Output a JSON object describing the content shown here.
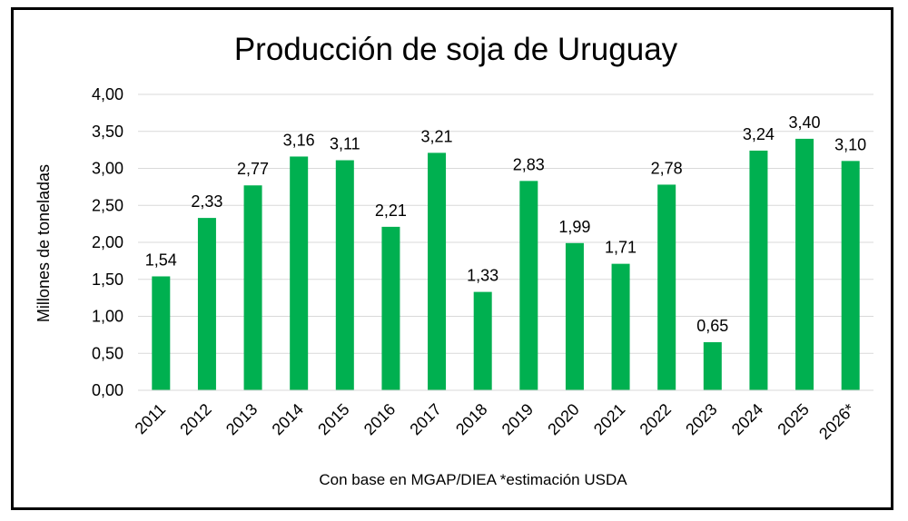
{
  "chart_data": {
    "type": "bar",
    "title": "Producción de soja de Uruguay",
    "ylabel": "Millones de toneladas",
    "xlabel": "",
    "footnote": "Con base en MGAP/DIEA *estimación USDA",
    "categories": [
      "2011",
      "2012",
      "2013",
      "2014",
      "2015",
      "2016",
      "2017",
      "2018",
      "2019",
      "2020",
      "2021",
      "2022",
      "2023",
      "2024",
      "2025",
      "2026*"
    ],
    "values": [
      1.54,
      2.33,
      2.77,
      3.16,
      3.11,
      2.21,
      3.21,
      1.33,
      2.83,
      1.99,
      1.71,
      2.78,
      0.65,
      3.24,
      3.4,
      3.1
    ],
    "value_labels": [
      "1,54",
      "2,33",
      "2,77",
      "3,16",
      "3,11",
      "2,21",
      "3,21",
      "1,33",
      "2,83",
      "1,99",
      "1,71",
      "2,78",
      "0,65",
      "3,24",
      "3,40",
      "3,10"
    ],
    "yticks": [
      0,
      0.5,
      1,
      1.5,
      2,
      2.5,
      3,
      3.5,
      4
    ],
    "ytick_labels": [
      "0,00",
      "0,50",
      "1,00",
      "1,50",
      "2,00",
      "2,50",
      "3,00",
      "3,50",
      "4,00"
    ],
    "ylim": [
      0,
      4
    ],
    "grid": true,
    "bar_color": "#00b050",
    "grid_color": "#d9d9d9"
  }
}
